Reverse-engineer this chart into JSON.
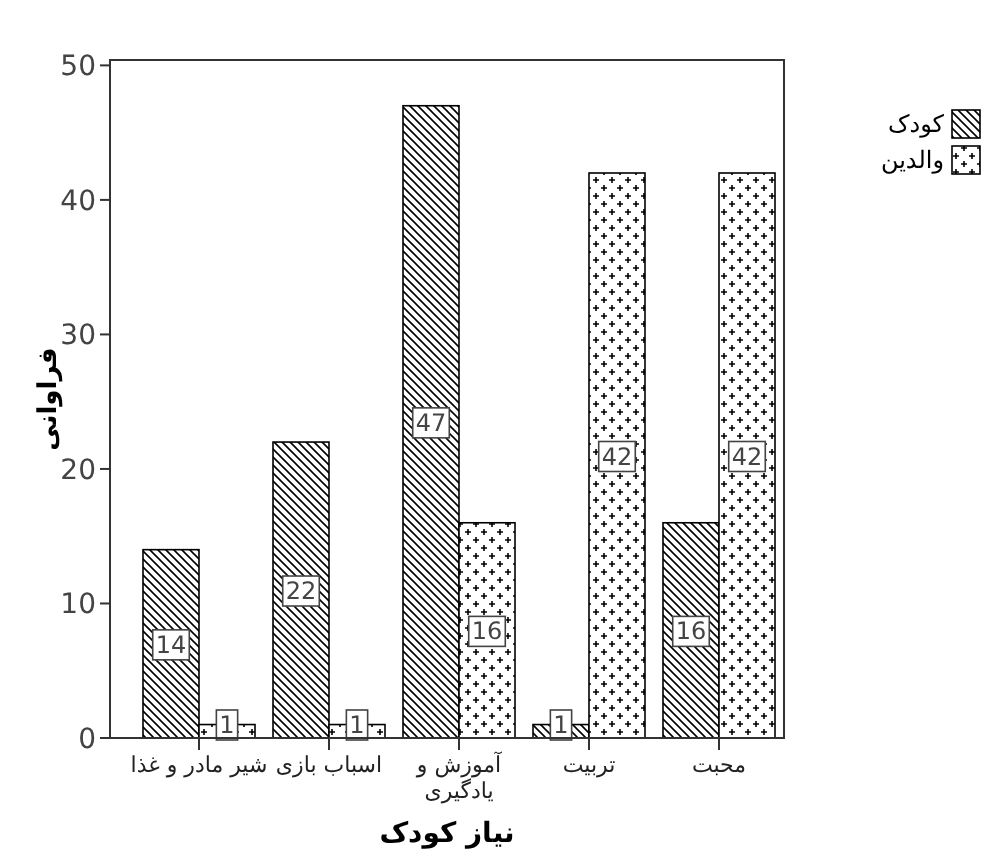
{
  "chart_data": {
    "type": "bar",
    "xlabel": "نیاز کودک",
    "ylabel": "فراوانی",
    "categories": [
      "شیر مادر و غذا",
      "اسباب بازی",
      "آموزش و یادگیری",
      "تربیت",
      "محبت"
    ],
    "series": [
      {
        "name": "کودک",
        "color": "#000000",
        "values": [
          14,
          22,
          47,
          1,
          16
        ]
      },
      {
        "name": "والدین",
        "color": "#000000",
        "values": [
          1,
          1,
          16,
          42,
          42
        ]
      }
    ],
    "ylim": [
      0,
      50.4
    ],
    "yticks": [
      0,
      10,
      20,
      30,
      40,
      50
    ],
    "grid": false,
    "legend": "right",
    "data_labels": true
  }
}
